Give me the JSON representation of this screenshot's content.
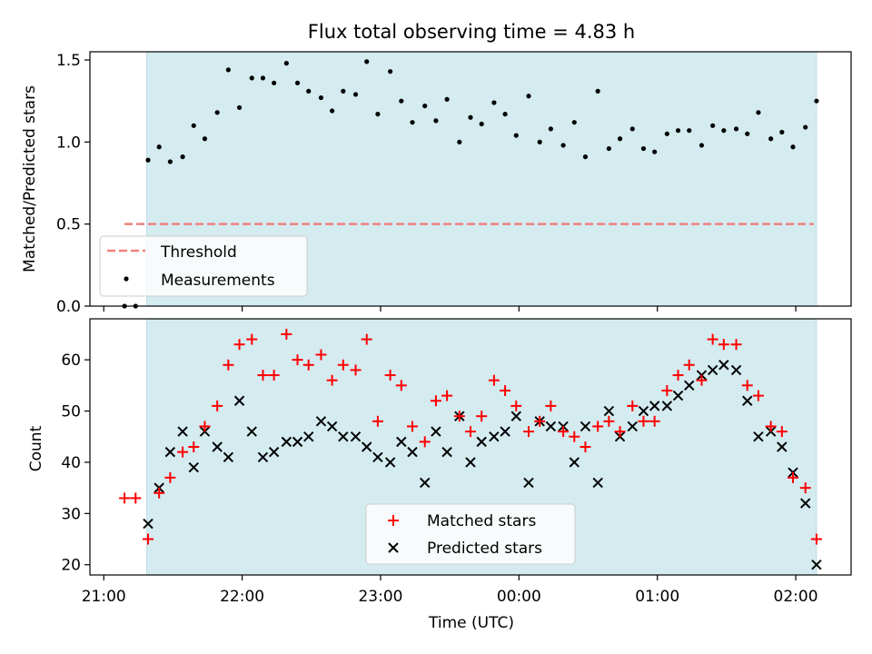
{
  "chart_data": [
    {
      "type": "scatter",
      "title": "Flux total observing time = 4.83 h",
      "xlabel": "",
      "ylabel": "Matched/Predicted stars",
      "x_unit": "hours since 21:00 UTC",
      "xlim": [
        -0.1,
        5.4
      ],
      "ylim": [
        0,
        1.55
      ],
      "yticks": [
        0.0,
        0.5,
        1.0,
        1.5
      ],
      "ytick_labels": [
        "0.0",
        "0.5",
        "1.0",
        "1.5"
      ],
      "xticks": [
        0,
        1,
        2,
        3,
        4,
        5
      ],
      "shaded_span": [
        0.31,
        5.15
      ],
      "shade_color": "#d4ebf0",
      "legend_position": "lower-left",
      "threshold": {
        "name": "Threshold",
        "y": 0.5,
        "x_range": [
          0.15,
          5.13
        ],
        "color": "#f08080"
      },
      "series": [
        {
          "name": "Measurements",
          "color": "#000000",
          "points": [
            [
              0.15,
              0.0
            ],
            [
              0.23,
              0.0
            ],
            [
              0.32,
              0.89
            ],
            [
              0.4,
              0.97
            ],
            [
              0.48,
              0.88
            ],
            [
              0.57,
              0.91
            ],
            [
              0.65,
              1.1
            ],
            [
              0.73,
              1.02
            ],
            [
              0.82,
              1.18
            ],
            [
              0.9,
              1.44
            ],
            [
              0.98,
              1.21
            ],
            [
              1.07,
              1.39
            ],
            [
              1.15,
              1.39
            ],
            [
              1.23,
              1.36
            ],
            [
              1.32,
              1.48
            ],
            [
              1.4,
              1.36
            ],
            [
              1.48,
              1.31
            ],
            [
              1.57,
              1.27
            ],
            [
              1.65,
              1.19
            ],
            [
              1.73,
              1.31
            ],
            [
              1.82,
              1.29
            ],
            [
              1.9,
              1.49
            ],
            [
              1.98,
              1.17
            ],
            [
              2.07,
              1.43
            ],
            [
              2.15,
              1.25
            ],
            [
              2.23,
              1.12
            ],
            [
              2.32,
              1.22
            ],
            [
              2.4,
              1.13
            ],
            [
              2.48,
              1.26
            ],
            [
              2.57,
              1.0
            ],
            [
              2.65,
              1.15
            ],
            [
              2.73,
              1.11
            ],
            [
              2.82,
              1.24
            ],
            [
              2.9,
              1.17
            ],
            [
              2.98,
              1.04
            ],
            [
              3.07,
              1.28
            ],
            [
              3.15,
              1.0
            ],
            [
              3.23,
              1.08
            ],
            [
              3.32,
              0.98
            ],
            [
              3.4,
              1.12
            ],
            [
              3.48,
              0.91
            ],
            [
              3.57,
              1.31
            ],
            [
              3.65,
              0.96
            ],
            [
              3.73,
              1.02
            ],
            [
              3.82,
              1.08
            ],
            [
              3.9,
              0.96
            ],
            [
              3.98,
              0.94
            ],
            [
              4.07,
              1.05
            ],
            [
              4.15,
              1.07
            ],
            [
              4.23,
              1.07
            ],
            [
              4.32,
              0.98
            ],
            [
              4.4,
              1.1
            ],
            [
              4.48,
              1.07
            ],
            [
              4.57,
              1.08
            ],
            [
              4.65,
              1.05
            ],
            [
              4.73,
              1.18
            ],
            [
              4.82,
              1.02
            ],
            [
              4.9,
              1.06
            ],
            [
              4.98,
              0.97
            ],
            [
              5.07,
              1.09
            ],
            [
              5.15,
              1.25
            ]
          ]
        }
      ]
    },
    {
      "type": "scatter",
      "title": "",
      "xlabel": "Time (UTC)",
      "ylabel": "Count",
      "x_unit": "hours since 21:00 UTC",
      "xlim": [
        -0.1,
        5.4
      ],
      "ylim": [
        18,
        68
      ],
      "yticks": [
        20,
        30,
        40,
        50,
        60
      ],
      "ytick_labels": [
        "20",
        "30",
        "40",
        "50",
        "60"
      ],
      "xticks": [
        0,
        1,
        2,
        3,
        4,
        5
      ],
      "xtick_labels": [
        "21:00",
        "22:00",
        "23:00",
        "00:00",
        "01:00",
        "02:00"
      ],
      "shaded_span": [
        0.31,
        5.15
      ],
      "shade_color": "#d4ebf0",
      "legend_position": "lower-center",
      "series": [
        {
          "name": "Matched stars",
          "marker": "+",
          "color": "#ff0000",
          "points": [
            [
              0.15,
              33
            ],
            [
              0.23,
              33
            ],
            [
              0.32,
              25
            ],
            [
              0.4,
              34
            ],
            [
              0.48,
              37
            ],
            [
              0.57,
              42
            ],
            [
              0.65,
              43
            ],
            [
              0.73,
              47
            ],
            [
              0.82,
              51
            ],
            [
              0.9,
              59
            ],
            [
              0.98,
              63
            ],
            [
              1.07,
              64
            ],
            [
              1.15,
              57
            ],
            [
              1.23,
              57
            ],
            [
              1.32,
              65
            ],
            [
              1.4,
              60
            ],
            [
              1.48,
              59
            ],
            [
              1.57,
              61
            ],
            [
              1.65,
              56
            ],
            [
              1.73,
              59
            ],
            [
              1.82,
              58
            ],
            [
              1.9,
              64
            ],
            [
              1.98,
              48
            ],
            [
              2.07,
              57
            ],
            [
              2.15,
              55
            ],
            [
              2.23,
              47
            ],
            [
              2.32,
              44
            ],
            [
              2.4,
              52
            ],
            [
              2.48,
              53
            ],
            [
              2.57,
              49
            ],
            [
              2.65,
              46
            ],
            [
              2.73,
              49
            ],
            [
              2.82,
              56
            ],
            [
              2.9,
              54
            ],
            [
              2.98,
              51
            ],
            [
              3.07,
              46
            ],
            [
              3.15,
              48
            ],
            [
              3.23,
              51
            ],
            [
              3.32,
              46
            ],
            [
              3.4,
              45
            ],
            [
              3.48,
              43
            ],
            [
              3.57,
              47
            ],
            [
              3.65,
              48
            ],
            [
              3.73,
              46
            ],
            [
              3.82,
              51
            ],
            [
              3.9,
              48
            ],
            [
              3.98,
              48
            ],
            [
              4.07,
              54
            ],
            [
              4.15,
              57
            ],
            [
              4.23,
              59
            ],
            [
              4.32,
              56
            ],
            [
              4.4,
              64
            ],
            [
              4.48,
              63
            ],
            [
              4.57,
              63
            ],
            [
              4.65,
              55
            ],
            [
              4.73,
              53
            ],
            [
              4.82,
              47
            ],
            [
              4.9,
              46
            ],
            [
              4.98,
              37
            ],
            [
              5.07,
              35
            ],
            [
              5.15,
              25
            ]
          ]
        },
        {
          "name": "Predicted stars",
          "marker": "x",
          "color": "#000000",
          "points": [
            [
              0.32,
              28
            ],
            [
              0.4,
              35
            ],
            [
              0.48,
              42
            ],
            [
              0.57,
              46
            ],
            [
              0.65,
              39
            ],
            [
              0.73,
              46
            ],
            [
              0.82,
              43
            ],
            [
              0.9,
              41
            ],
            [
              0.98,
              52
            ],
            [
              1.07,
              46
            ],
            [
              1.15,
              41
            ],
            [
              1.23,
              42
            ],
            [
              1.32,
              44
            ],
            [
              1.4,
              44
            ],
            [
              1.48,
              45
            ],
            [
              1.57,
              48
            ],
            [
              1.65,
              47
            ],
            [
              1.73,
              45
            ],
            [
              1.82,
              45
            ],
            [
              1.9,
              43
            ],
            [
              1.98,
              41
            ],
            [
              2.07,
              40
            ],
            [
              2.15,
              44
            ],
            [
              2.23,
              42
            ],
            [
              2.32,
              36
            ],
            [
              2.4,
              46
            ],
            [
              2.48,
              42
            ],
            [
              2.57,
              49
            ],
            [
              2.65,
              40
            ],
            [
              2.73,
              44
            ],
            [
              2.82,
              45
            ],
            [
              2.9,
              46
            ],
            [
              2.98,
              49
            ],
            [
              3.07,
              36
            ],
            [
              3.15,
              48
            ],
            [
              3.23,
              47
            ],
            [
              3.32,
              47
            ],
            [
              3.4,
              40
            ],
            [
              3.48,
              47
            ],
            [
              3.57,
              36
            ],
            [
              3.65,
              50
            ],
            [
              3.73,
              45
            ],
            [
              3.82,
              47
            ],
            [
              3.9,
              50
            ],
            [
              3.98,
              51
            ],
            [
              4.07,
              51
            ],
            [
              4.15,
              53
            ],
            [
              4.23,
              55
            ],
            [
              4.32,
              57
            ],
            [
              4.4,
              58
            ],
            [
              4.48,
              59
            ],
            [
              4.57,
              58
            ],
            [
              4.65,
              52
            ],
            [
              4.73,
              45
            ],
            [
              4.82,
              46
            ],
            [
              4.9,
              43
            ],
            [
              4.98,
              38
            ],
            [
              5.07,
              32
            ],
            [
              5.15,
              20
            ]
          ]
        }
      ]
    }
  ]
}
